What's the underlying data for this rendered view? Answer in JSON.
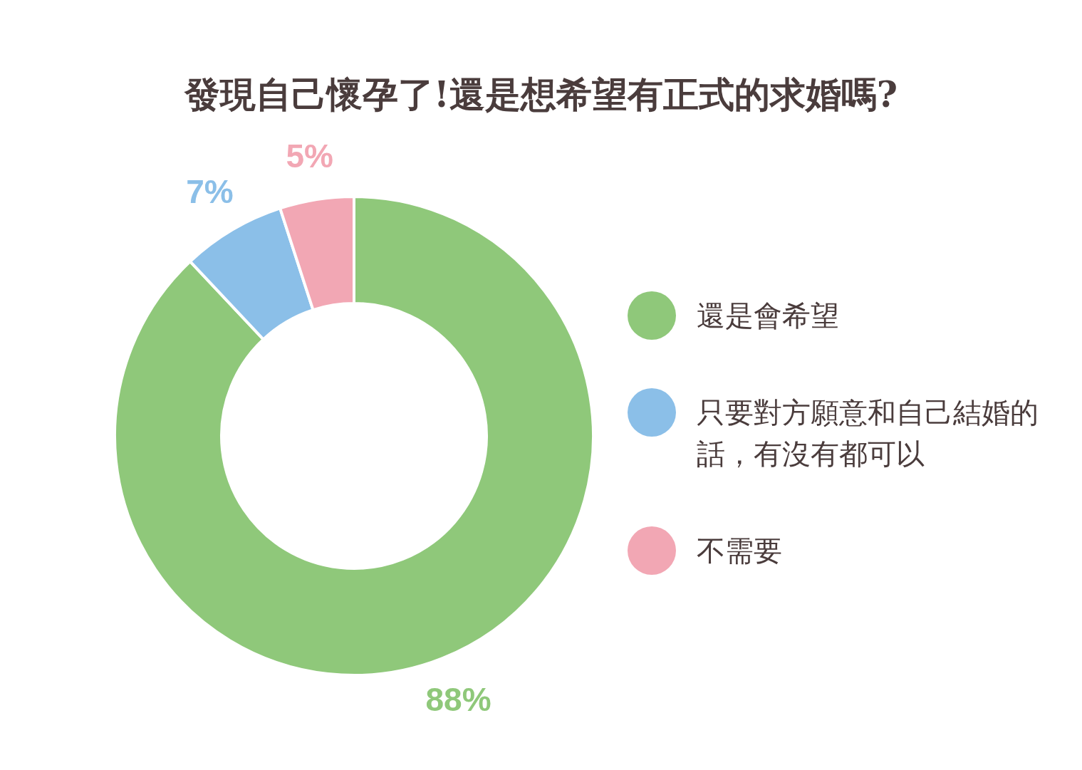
{
  "chart_data": {
    "type": "donut",
    "title": "發現自己懷孕了!還是想希望有正式的求婚嗎?",
    "categories": [
      "還是會希望",
      "只要對方願意和自己結婚的話，有沒有都可以",
      "不需要"
    ],
    "values": [
      88,
      7,
      5
    ],
    "colors": [
      "#8fc87a",
      "#8bbfe8",
      "#f2a7b4"
    ],
    "value_labels": [
      "88%",
      "7%",
      "5%"
    ],
    "legend": "right"
  }
}
